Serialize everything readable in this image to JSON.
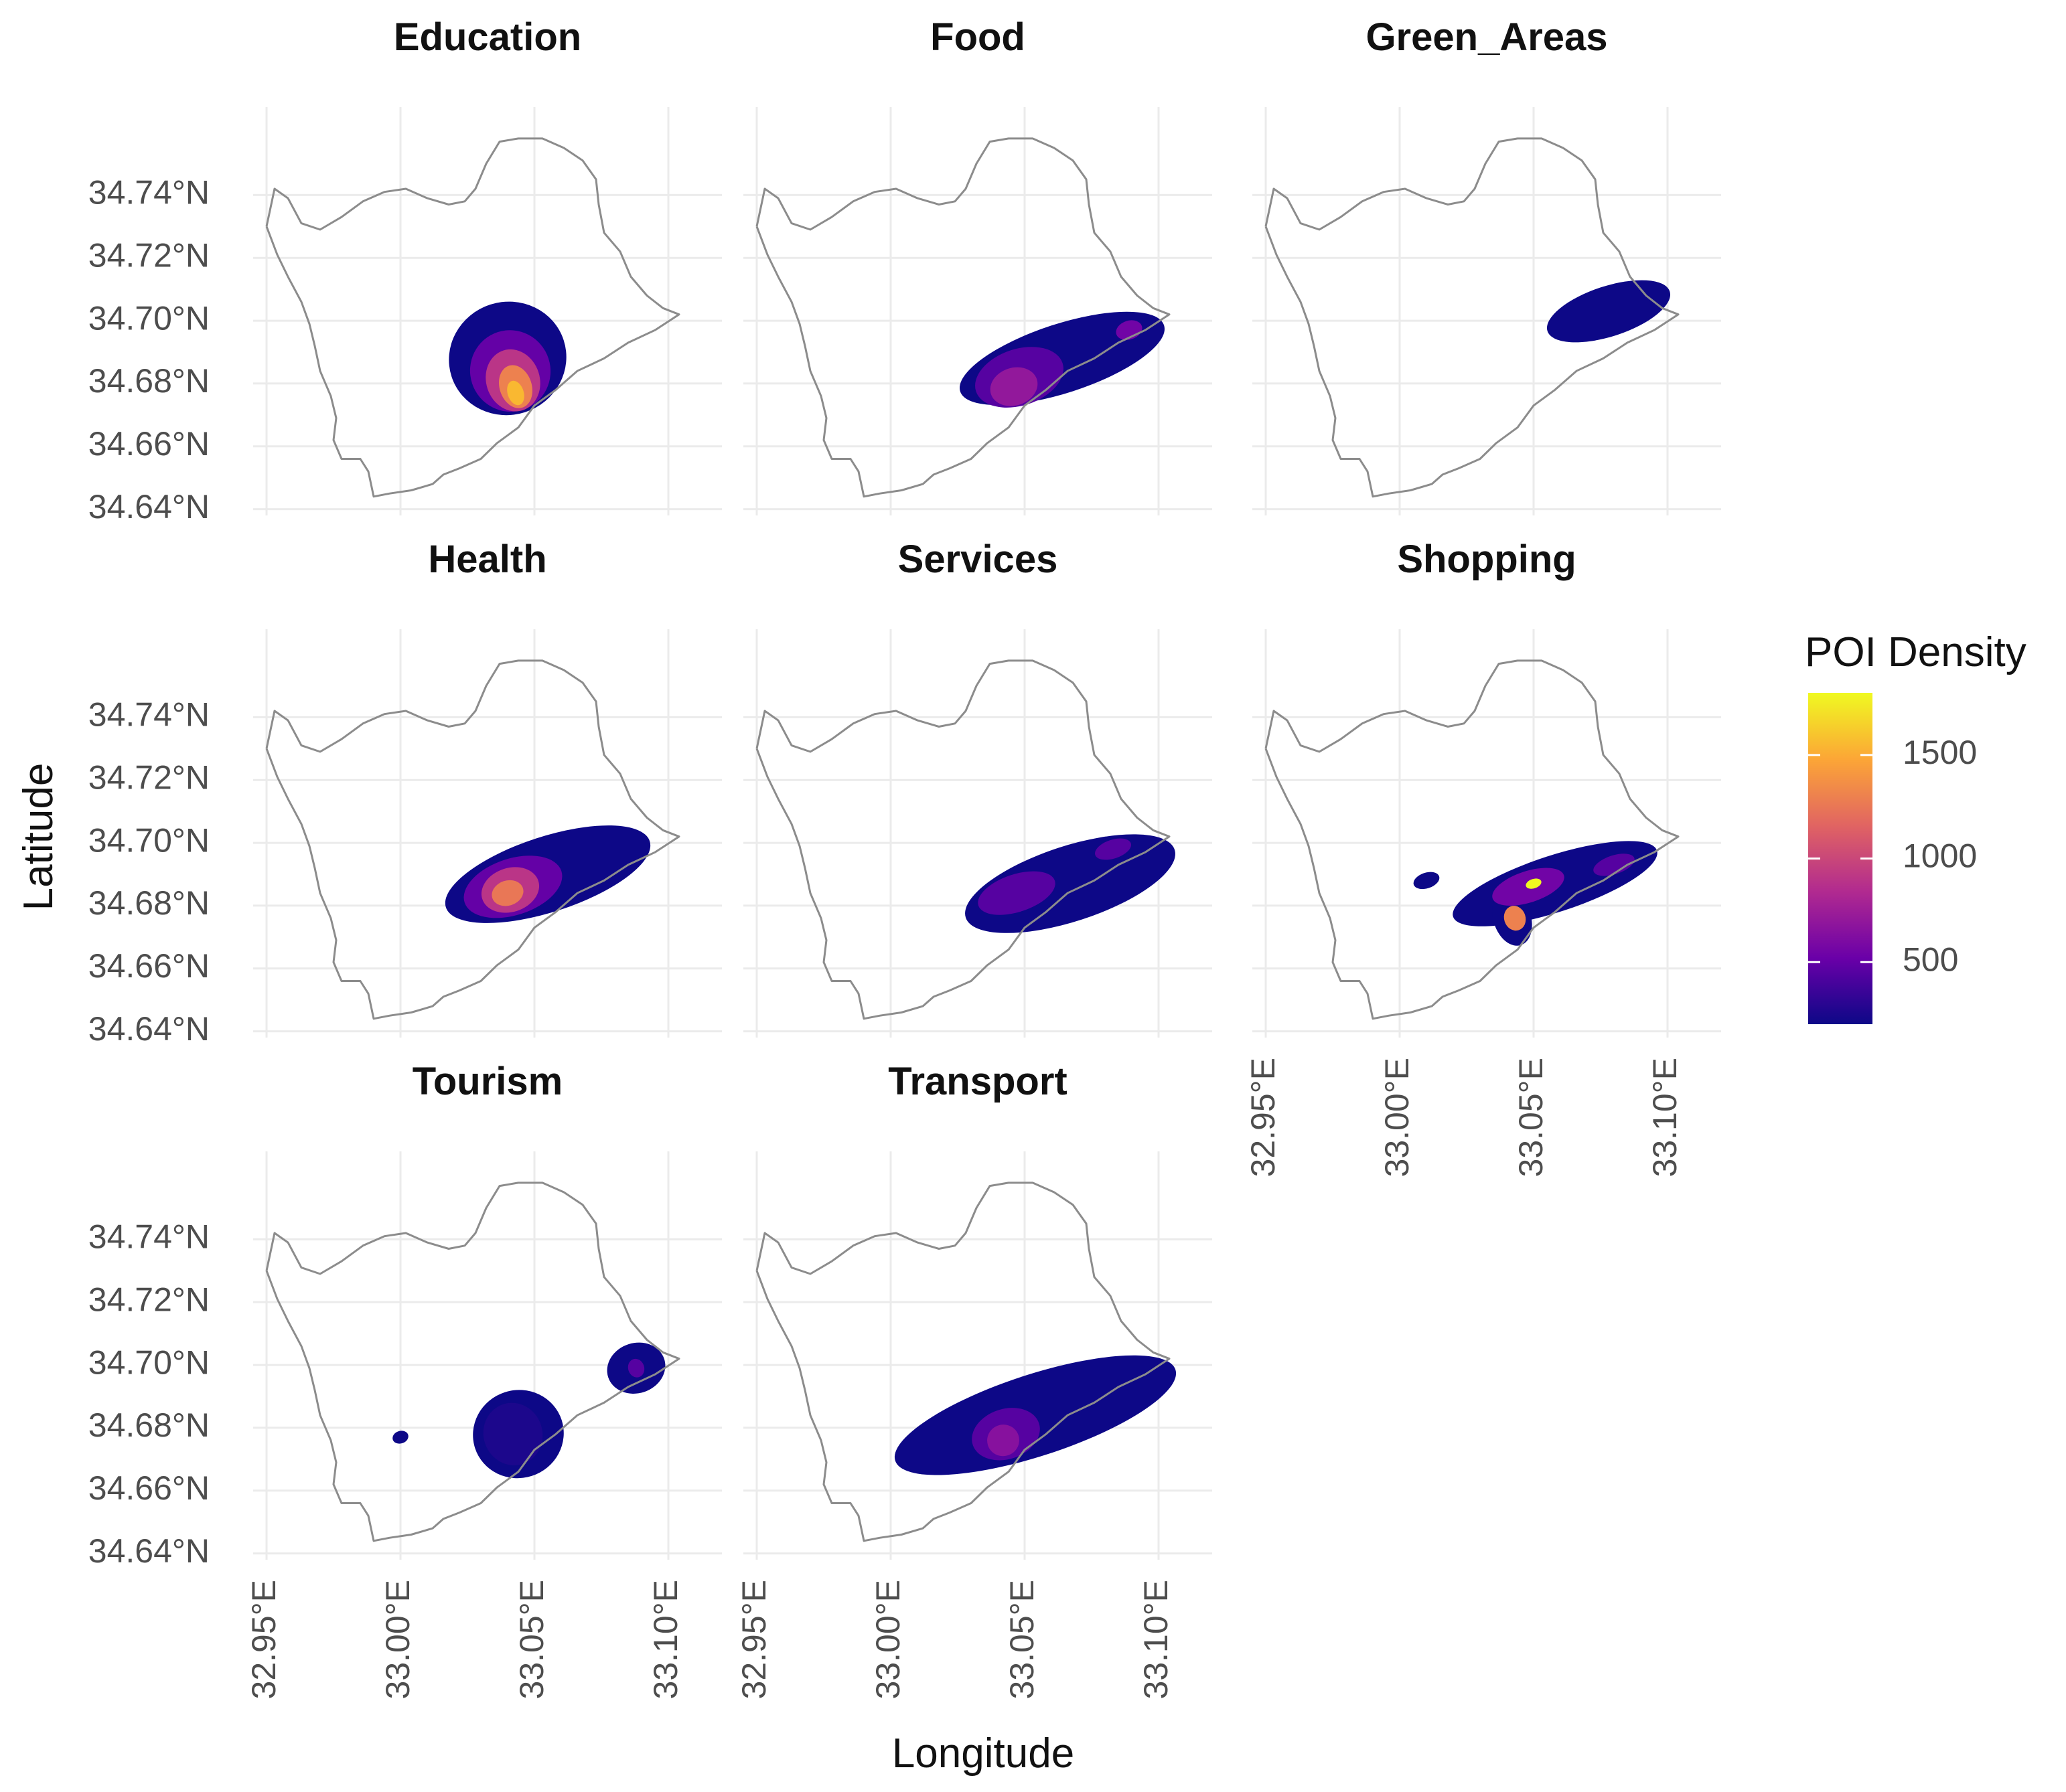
{
  "chart_data": {
    "type": "faceted-density-map",
    "xlabel": "Longitude",
    "ylabel": "Latitude",
    "x_ticks": [
      "32.95°E",
      "33.00°E",
      "33.05°E",
      "33.10°E"
    ],
    "x_tick_values": [
      32.95,
      33.0,
      33.05,
      33.1
    ],
    "y_ticks": [
      "34.74°N",
      "34.72°N",
      "34.70°N",
      "34.68°N",
      "34.66°N",
      "34.64°N"
    ],
    "y_tick_values": [
      34.74,
      34.72,
      34.7,
      34.68,
      34.66,
      34.64
    ],
    "xlim": [
      32.945,
      33.12
    ],
    "ylim": [
      34.638,
      34.768
    ],
    "legend": {
      "title": "POI Density",
      "ticks": [
        "500",
        "1000",
        "1500"
      ],
      "tick_values": [
        500,
        1000,
        1500
      ],
      "range": [
        200,
        1800
      ],
      "colormap": "plasma",
      "colors": [
        "#0d0887",
        "#6a00a8",
        "#b12a90",
        "#e16462",
        "#fca636",
        "#f0f921"
      ]
    },
    "boundary": [
      [
        32.95,
        34.73
      ],
      [
        32.953,
        34.742
      ],
      [
        32.958,
        34.739
      ],
      [
        32.963,
        34.731
      ],
      [
        32.97,
        34.729
      ],
      [
        32.978,
        34.733
      ],
      [
        32.986,
        34.738
      ],
      [
        32.994,
        34.741
      ],
      [
        33.002,
        34.742
      ],
      [
        33.01,
        34.739
      ],
      [
        33.018,
        34.737
      ],
      [
        33.024,
        34.738
      ],
      [
        33.028,
        34.742
      ],
      [
        33.032,
        34.75
      ],
      [
        33.037,
        34.757
      ],
      [
        33.044,
        34.758
      ],
      [
        33.053,
        34.758
      ],
      [
        33.061,
        34.755
      ],
      [
        33.068,
        34.751
      ],
      [
        33.073,
        34.745
      ],
      [
        33.074,
        34.737
      ],
      [
        33.076,
        34.728
      ],
      [
        33.082,
        34.722
      ],
      [
        33.086,
        34.714
      ],
      [
        33.092,
        34.708
      ],
      [
        33.098,
        34.704
      ],
      [
        33.104,
        34.702
      ],
      [
        33.095,
        34.697
      ],
      [
        33.085,
        34.693
      ],
      [
        33.076,
        34.688
      ],
      [
        33.066,
        34.684
      ],
      [
        33.058,
        34.678
      ],
      [
        33.05,
        34.673
      ],
      [
        33.044,
        34.666
      ],
      [
        33.036,
        34.661
      ],
      [
        33.03,
        34.656
      ],
      [
        33.022,
        34.653
      ],
      [
        33.016,
        34.651
      ],
      [
        33.012,
        34.648
      ],
      [
        33.004,
        34.646
      ],
      [
        32.996,
        34.645
      ],
      [
        32.99,
        34.644
      ],
      [
        32.988,
        34.652
      ],
      [
        32.985,
        34.656
      ],
      [
        32.978,
        34.656
      ],
      [
        32.975,
        34.662
      ],
      [
        32.976,
        34.669
      ],
      [
        32.974,
        34.676
      ],
      [
        32.97,
        34.684
      ],
      [
        32.968,
        34.692
      ],
      [
        32.966,
        34.699
      ],
      [
        32.963,
        34.706
      ],
      [
        32.958,
        34.714
      ],
      [
        32.954,
        34.721
      ],
      [
        32.95,
        34.73
      ]
    ],
    "panels": [
      {
        "name": "Education",
        "layers": [
          {
            "density": 200,
            "lon": 33.04,
            "lat": 34.688,
            "rx": 0.022,
            "ry": 0.018
          },
          {
            "density": 500,
            "lon": 33.041,
            "lat": 34.684,
            "rx": 0.015,
            "ry": 0.013
          },
          {
            "density": 900,
            "lon": 33.042,
            "lat": 34.681,
            "rx": 0.01,
            "ry": 0.01
          },
          {
            "density": 1300,
            "lon": 33.043,
            "lat": 34.679,
            "rx": 0.006,
            "ry": 0.007
          },
          {
            "density": 1550,
            "lon": 33.043,
            "lat": 34.677,
            "rx": 0.003,
            "ry": 0.004
          }
        ]
      },
      {
        "name": "Food",
        "layers": [
          {
            "density": 200,
            "lon": 33.064,
            "lat": 34.688,
            "rx": 0.04,
            "ry": 0.011
          },
          {
            "density": 450,
            "lon": 33.048,
            "lat": 34.682,
            "rx": 0.017,
            "ry": 0.009
          },
          {
            "density": 700,
            "lon": 33.046,
            "lat": 34.679,
            "rx": 0.009,
            "ry": 0.006
          },
          {
            "density": 550,
            "lon": 33.089,
            "lat": 34.697,
            "rx": 0.005,
            "ry": 0.003
          }
        ]
      },
      {
        "name": "Green_Areas",
        "layers": [
          {
            "density": 200,
            "lon": 33.078,
            "lat": 34.703,
            "rx": 0.024,
            "ry": 0.008
          }
        ]
      },
      {
        "name": "Health",
        "layers": [
          {
            "density": 200,
            "lon": 33.055,
            "lat": 34.69,
            "rx": 0.04,
            "ry": 0.012
          },
          {
            "density": 500,
            "lon": 33.042,
            "lat": 34.686,
            "rx": 0.019,
            "ry": 0.009
          },
          {
            "density": 900,
            "lon": 33.041,
            "lat": 34.685,
            "rx": 0.011,
            "ry": 0.007
          },
          {
            "density": 1250,
            "lon": 33.04,
            "lat": 34.684,
            "rx": 0.006,
            "ry": 0.004
          }
        ]
      },
      {
        "name": "Services",
        "layers": [
          {
            "density": 200,
            "lon": 33.067,
            "lat": 34.687,
            "rx": 0.041,
            "ry": 0.012
          },
          {
            "density": 450,
            "lon": 33.047,
            "lat": 34.684,
            "rx": 0.015,
            "ry": 0.006
          },
          {
            "density": 450,
            "lon": 33.083,
            "lat": 34.698,
            "rx": 0.007,
            "ry": 0.003
          }
        ]
      },
      {
        "name": "Shopping",
        "layers": [
          {
            "density": 200,
            "lon": 33.058,
            "lat": 34.687,
            "rx": 0.04,
            "ry": 0.009
          },
          {
            "density": 200,
            "lon": 33.042,
            "lat": 34.676,
            "rx": 0.007,
            "ry": 0.009
          },
          {
            "density": 200,
            "lon": 33.01,
            "lat": 34.688,
            "rx": 0.005,
            "ry": 0.0025
          },
          {
            "density": 550,
            "lon": 33.048,
            "lat": 34.686,
            "rx": 0.014,
            "ry": 0.005
          },
          {
            "density": 450,
            "lon": 33.08,
            "lat": 34.693,
            "rx": 0.008,
            "ry": 0.003
          },
          {
            "density": 1300,
            "lon": 33.043,
            "lat": 34.676,
            "rx": 0.004,
            "ry": 0.004
          },
          {
            "density": 1800,
            "lon": 33.05,
            "lat": 34.687,
            "rx": 0.003,
            "ry": 0.0015
          }
        ]
      },
      {
        "name": "Tourism",
        "layers": [
          {
            "density": 200,
            "lon": 33.044,
            "lat": 34.678,
            "rx": 0.017,
            "ry": 0.014
          },
          {
            "density": 200,
            "lon": 33.088,
            "lat": 34.699,
            "rx": 0.011,
            "ry": 0.008
          },
          {
            "density": 200,
            "lon": 33.0,
            "lat": 34.677,
            "rx": 0.003,
            "ry": 0.002
          },
          {
            "density": 250,
            "lon": 33.042,
            "lat": 34.678,
            "rx": 0.011,
            "ry": 0.01
          },
          {
            "density": 450,
            "lon": 33.088,
            "lat": 34.699,
            "rx": 0.003,
            "ry": 0.003
          }
        ]
      },
      {
        "name": "Transport",
        "layers": [
          {
            "density": 200,
            "lon": 33.054,
            "lat": 34.684,
            "rx": 0.055,
            "ry": 0.013
          },
          {
            "density": 450,
            "lon": 33.043,
            "lat": 34.678,
            "rx": 0.013,
            "ry": 0.008
          },
          {
            "density": 650,
            "lon": 33.042,
            "lat": 34.676,
            "rx": 0.006,
            "ry": 0.005
          }
        ]
      }
    ]
  }
}
